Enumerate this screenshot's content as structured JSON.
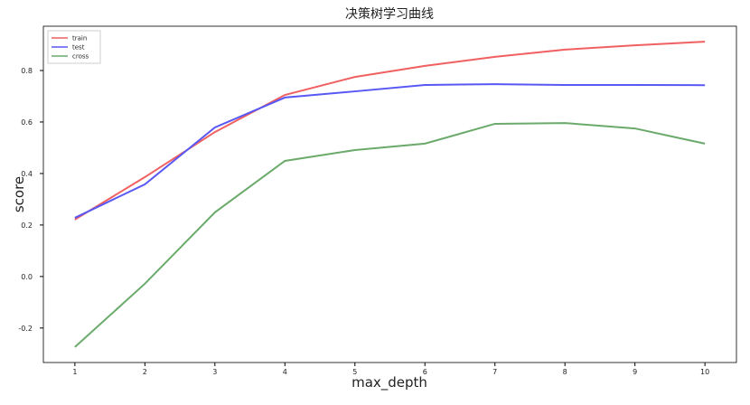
{
  "chart_data": {
    "type": "line",
    "title": "决策树学习曲线",
    "x_label": "max_depth",
    "y_label": "score",
    "x": [
      1,
      2,
      3,
      4,
      5,
      6,
      7,
      8,
      9,
      10
    ],
    "series": [
      {
        "name": "train",
        "color": "#f06060",
        "values": [
          0.221,
          0.386,
          0.561,
          0.705,
          0.775,
          0.818,
          0.853,
          0.881,
          0.898,
          0.912
        ]
      },
      {
        "name": "test",
        "color": "#5858f5",
        "values": [
          0.228,
          0.358,
          0.579,
          0.695,
          0.719,
          0.744,
          0.747,
          0.744,
          0.744,
          0.743
        ]
      },
      {
        "name": "cross",
        "color": "#6aaa6a",
        "values": [
          -0.274,
          -0.028,
          0.249,
          0.449,
          0.491,
          0.516,
          0.593,
          0.596,
          0.575,
          0.516
        ]
      }
    ],
    "xlim": [
      0.55,
      10.45
    ],
    "xticks": [
      1,
      2,
      3,
      4,
      5,
      6,
      7,
      8,
      9,
      10
    ],
    "ylim": [
      -0.334,
      0.972
    ],
    "yticks": [
      -0.2,
      {
        "value": 0,
        "label": "0.0"
      },
      0.2,
      0.4,
      0.6,
      0.8
    ],
    "legend": "upper left"
  }
}
